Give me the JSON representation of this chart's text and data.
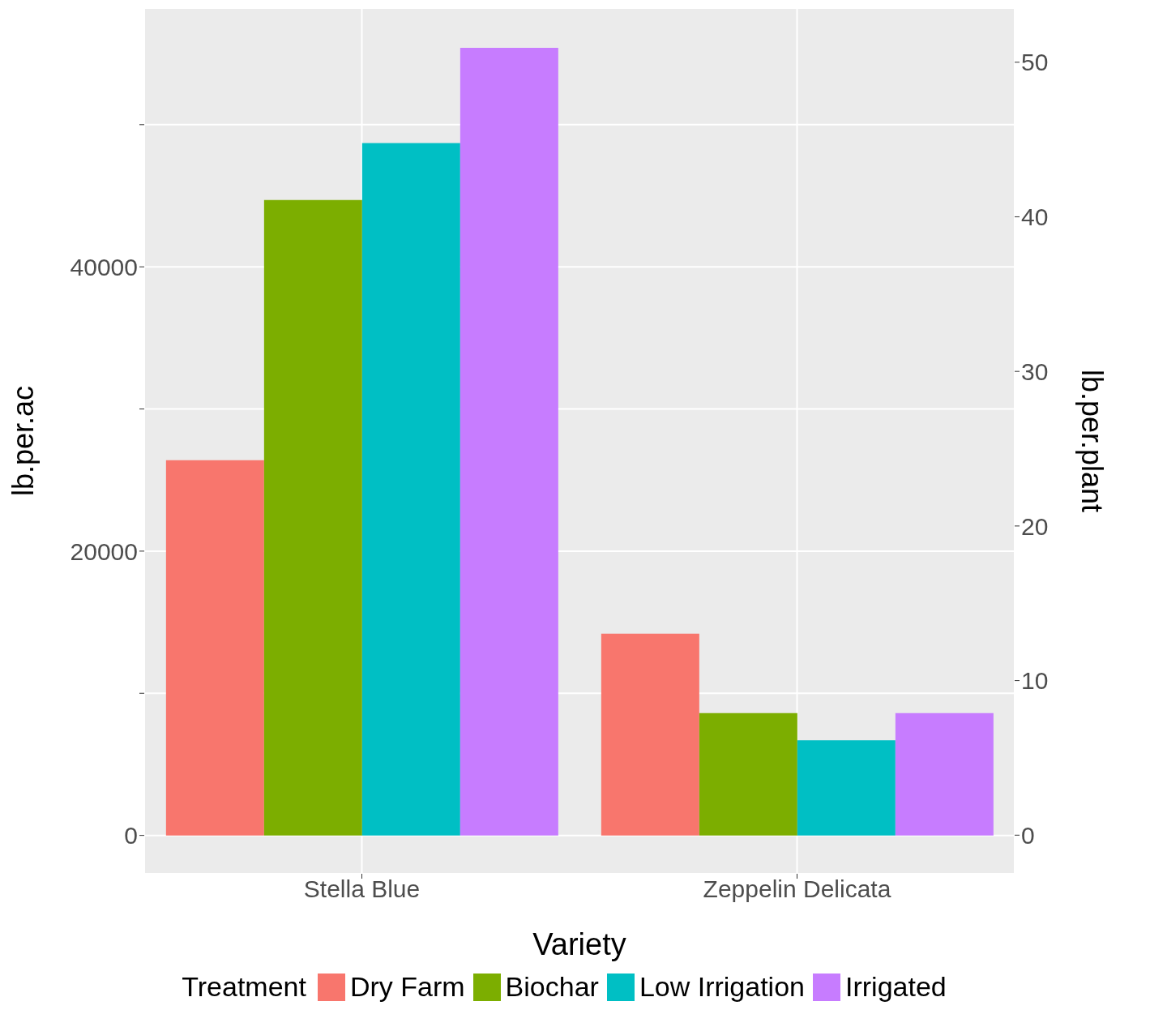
{
  "chart_data": {
    "type": "bar",
    "xlabel": "Variety",
    "ylabel": "lb.per.ac",
    "y2label": "lb.per.plant",
    "legend_title": "Treatment",
    "legend": "bottom",
    "grid": true,
    "categories": [
      "Stella Blue",
      "Zeppelin Delicata"
    ],
    "series": [
      {
        "name": "Dry Farm",
        "color": "#f8766d",
        "values": [
          26400,
          14200
        ]
      },
      {
        "name": "Biochar",
        "color": "#7cae00",
        "values": [
          44700,
          8600
        ]
      },
      {
        "name": "Low Irrigation",
        "color": "#00bfc4",
        "values": [
          48700,
          6700
        ]
      },
      {
        "name": "Irrigated",
        "color": "#c77cff",
        "values": [
          55400,
          8600
        ]
      }
    ],
    "ylim": [
      -2700,
      58200
    ],
    "yticks": [
      0,
      {
        "value": 10000,
        "label": null
      },
      20000,
      {
        "value": 30000,
        "label": null
      },
      40000,
      {
        "value": 50000,
        "label": null
      }
    ],
    "y2lim": [
      -2.5,
      53.5
    ],
    "y2ticks": [
      0,
      10,
      20,
      30,
      40,
      50
    ]
  }
}
